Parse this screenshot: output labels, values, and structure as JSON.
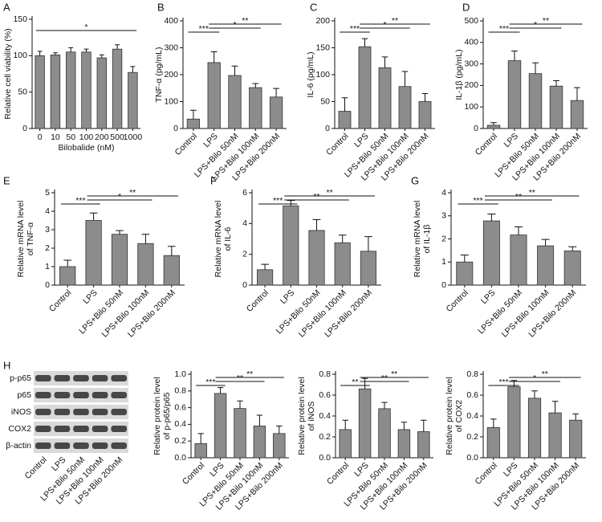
{
  "chart_data": [
    {
      "type": "bar",
      "panel": "A",
      "ylabel": [
        "Relative cell viability (%)"
      ],
      "xlabel": "Bilobalide (nM)",
      "rotate_labels": false,
      "categories": [
        "0",
        "10",
        "50",
        "100",
        "200",
        "500",
        "1000"
      ],
      "values": [
        100,
        101,
        105,
        105,
        97,
        109,
        77
      ],
      "errors": [
        6,
        3,
        6,
        4,
        4,
        6,
        8
      ],
      "ylim": [
        0,
        150
      ],
      "yticks": [
        0,
        50,
        100,
        150
      ],
      "color": "#8c8c8c",
      "annotations": [
        {
          "label": "*",
          "from": "0",
          "to": "1000"
        }
      ]
    },
    {
      "type": "bar",
      "panel": "B",
      "ylabel": [
        "TNF-α (pg/mL)"
      ],
      "rotate_labels": true,
      "categories": [
        "Control",
        "LPS",
        "LPS+Bilo 50nM",
        "LPS+Bilo 100nM",
        "LPS+Bilo 200nM"
      ],
      "values": [
        35,
        245,
        197,
        152,
        117
      ],
      "errors": [
        33,
        40,
        35,
        15,
        32
      ],
      "ylim": [
        0,
        400
      ],
      "yticks": [
        0,
        100,
        200,
        300,
        400
      ],
      "color": "#8c8c8c",
      "annotations": [
        {
          "label": "***",
          "from": "Control",
          "to": "LPS"
        },
        {
          "label": "*",
          "from": "LPS",
          "to": "LPS+Bilo 100nM"
        },
        {
          "label": "**",
          "from": "LPS",
          "to": "LPS+Bilo 200nM"
        }
      ]
    },
    {
      "type": "bar",
      "panel": "C",
      "ylabel": [
        "IL-6 (pg/mL)"
      ],
      "rotate_labels": true,
      "categories": [
        "Control",
        "LPS",
        "LPS+Bilo 50nM",
        "LPS+Bilo 100nM",
        "LPS+Bilo 200nM"
      ],
      "values": [
        32,
        152,
        113,
        78,
        50
      ],
      "errors": [
        25,
        15,
        20,
        28,
        15
      ],
      "ylim": [
        0,
        200
      ],
      "yticks": [
        0,
        50,
        100,
        150,
        200
      ],
      "color": "#8c8c8c",
      "annotations": [
        {
          "label": "***",
          "from": "Control",
          "to": "LPS"
        },
        {
          "label": "*",
          "from": "LPS",
          "to": "LPS+Bilo 100nM"
        },
        {
          "label": "**",
          "from": "LPS",
          "to": "LPS+Bilo 200nM"
        }
      ]
    },
    {
      "type": "bar",
      "panel": "D",
      "ylabel": [
        "IL-1β (pg/mL)"
      ],
      "rotate_labels": true,
      "categories": [
        "Control",
        "LPS",
        "LPS+Bilo 50nM",
        "LPS+Bilo 100nM",
        "LPS+Bilo 200nM"
      ],
      "values": [
        15,
        315,
        255,
        197,
        130
      ],
      "errors": [
        12,
        45,
        50,
        25,
        60
      ],
      "ylim": [
        0,
        500
      ],
      "yticks": [
        0,
        100,
        200,
        300,
        400,
        500
      ],
      "color": "#8c8c8c",
      "annotations": [
        {
          "label": "***",
          "from": "Control",
          "to": "LPS"
        },
        {
          "label": "*",
          "from": "LPS",
          "to": "LPS+Bilo 100nM"
        },
        {
          "label": "**",
          "from": "LPS",
          "to": "LPS+Bilo 200nM"
        }
      ]
    },
    {
      "type": "bar",
      "panel": "E",
      "ylabel": [
        "Relative mRNA level",
        "of TNF-α"
      ],
      "rotate_labels": true,
      "categories": [
        "Control",
        "LPS",
        "LPS+Bilo 50nM",
        "LPS+Bilo 100nM",
        "LPS+Bilo 200nM"
      ],
      "values": [
        1.0,
        3.5,
        2.75,
        2.25,
        1.6
      ],
      "errors": [
        0.35,
        0.4,
        0.2,
        0.5,
        0.5
      ],
      "ylim": [
        0,
        5
      ],
      "yticks": [
        0,
        1,
        2,
        3,
        4,
        5
      ],
      "color": "#8c8c8c",
      "annotations": [
        {
          "label": "***",
          "from": "Control",
          "to": "LPS"
        },
        {
          "label": "*",
          "from": "LPS",
          "to": "LPS+Bilo 100nM"
        },
        {
          "label": "**",
          "from": "LPS",
          "to": "LPS+Bilo 200nM"
        }
      ]
    },
    {
      "type": "bar",
      "panel": "F",
      "ylabel": [
        "Relative mRNA level",
        "of IL-6"
      ],
      "rotate_labels": true,
      "categories": [
        "Control",
        "LPS",
        "LPS+Bilo 50nM",
        "LPS+Bilo 100nM",
        "LPS+Bilo 200nM"
      ],
      "values": [
        1.0,
        5.15,
        3.55,
        2.75,
        2.2
      ],
      "errors": [
        0.35,
        0.35,
        0.7,
        0.5,
        0.95
      ],
      "ylim": [
        0,
        6
      ],
      "yticks": [
        0,
        2,
        4,
        6
      ],
      "color": "#8c8c8c",
      "annotations": [
        {
          "label": "***",
          "from": "Control",
          "to": "LPS"
        },
        {
          "label": "**",
          "from": "LPS",
          "to": "LPS+Bilo 100nM"
        },
        {
          "label": "**",
          "from": "LPS",
          "to": "LPS+Bilo 200nM"
        }
      ]
    },
    {
      "type": "bar",
      "panel": "G",
      "ylabel": [
        "Relative mRNA level",
        "of IL-1β"
      ],
      "rotate_labels": true,
      "categories": [
        "Control",
        "LPS",
        "LPS+Bilo 50nM",
        "LPS+Bilo 100nM",
        "LPS+Bilo 200nM"
      ],
      "values": [
        1.0,
        2.78,
        2.17,
        1.7,
        1.48
      ],
      "errors": [
        0.3,
        0.3,
        0.35,
        0.28,
        0.18
      ],
      "ylim": [
        0,
        4
      ],
      "yticks": [
        0,
        1,
        2,
        3,
        4
      ],
      "color": "#8c8c8c",
      "annotations": [
        {
          "label": "***",
          "from": "Control",
          "to": "LPS"
        },
        {
          "label": "**",
          "from": "LPS",
          "to": "LPS+Bilo 100nM"
        },
        {
          "label": "**",
          "from": "LPS",
          "to": "LPS+Bilo 200nM"
        }
      ]
    },
    {
      "type": "bar",
      "ylabel": [
        "Relative protein level",
        "of p-p65/p65"
      ],
      "rotate_labels": true,
      "categories": [
        "Control",
        "LPS",
        "LPS+Bilo 50nM",
        "LPS+Bilo 100nM",
        "LPS+Bilo 200nM"
      ],
      "values": [
        0.17,
        0.77,
        0.59,
        0.38,
        0.29
      ],
      "errors": [
        0.12,
        0.07,
        0.09,
        0.13,
        0.09
      ],
      "ylim": [
        0,
        1.0
      ],
      "yticks": [
        {
          "value": 0,
          "label": "0.0"
        },
        0.2,
        0.4,
        0.6,
        0.8,
        {
          "value": 1,
          "label": "1.0"
        }
      ],
      "color": "#8c8c8c",
      "annotations": [
        {
          "label": "***",
          "from": "Control",
          "to": "LPS"
        },
        {
          "label": "**",
          "from": "LPS",
          "to": "LPS+Bilo 100nM"
        },
        {
          "label": "**",
          "from": "LPS",
          "to": "LPS+Bilo 200nM"
        }
      ]
    },
    {
      "type": "bar",
      "ylabel": [
        "Relative protein level",
        "of iNOS"
      ],
      "rotate_labels": true,
      "categories": [
        "Control",
        "LPS",
        "LPS+Bilo 50nM",
        "LPS+Bilo 100nM",
        "LPS+Bilo 200nM"
      ],
      "values": [
        0.27,
        0.66,
        0.47,
        0.27,
        0.25
      ],
      "errors": [
        0.09,
        0.1,
        0.06,
        0.07,
        0.11
      ],
      "ylim": [
        0,
        0.8
      ],
      "yticks": [
        {
          "value": 0,
          "label": "0.0"
        },
        0.2,
        0.4,
        0.6,
        0.8
      ],
      "color": "#8c8c8c",
      "annotations": [
        {
          "label": "**",
          "from": "Control",
          "to": "LPS"
        },
        {
          "label": "**",
          "from": "LPS",
          "to": "LPS+Bilo 100nM"
        },
        {
          "label": "**",
          "from": "LPS",
          "to": "LPS+Bilo 200nM"
        }
      ]
    },
    {
      "type": "bar",
      "ylabel": [
        "Relative protein level",
        "of COX2"
      ],
      "rotate_labels": true,
      "categories": [
        "Control",
        "LPS",
        "LPS+Bilo 50nM",
        "LPS+Bilo 100nM",
        "LPS+Bilo 200nM"
      ],
      "values": [
        0.29,
        0.68,
        0.57,
        0.43,
        0.36
      ],
      "errors": [
        0.08,
        0.06,
        0.07,
        0.11,
        0.06
      ],
      "ylim": [
        0,
        0.8
      ],
      "yticks": [
        {
          "value": 0,
          "label": "0.0"
        },
        0.2,
        0.4,
        0.6,
        0.8
      ],
      "color": "#8c8c8c",
      "annotations": [
        {
          "label": "***",
          "from": "Control",
          "to": "LPS"
        },
        {
          "label": "*",
          "from": "LPS",
          "to": "LPS+Bilo 100nM"
        },
        {
          "label": "**",
          "from": "LPS",
          "to": "LPS+Bilo 200nM"
        }
      ]
    }
  ],
  "blot": {
    "panel": "H",
    "rows": [
      "p-p65",
      "p65",
      "iNOS",
      "COX2",
      "β-actin"
    ],
    "lanes": [
      "Control",
      "LPS",
      "LPS+Bilo 50nM",
      "LPS+Bilo 100nM",
      "LPS+Bilo 200nM"
    ]
  }
}
